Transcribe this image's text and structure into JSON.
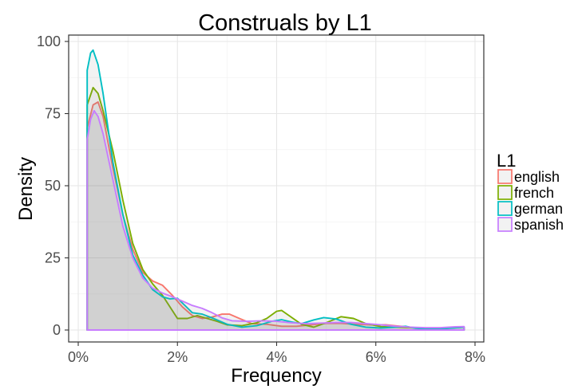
{
  "chart_data": {
    "type": "area",
    "title": "Construals by L1",
    "xlabel": "Frequency",
    "ylabel": "Density",
    "xlim": [
      0,
      8
    ],
    "ylim": [
      0,
      100
    ],
    "x_ticks": [
      0,
      2,
      4,
      6,
      8
    ],
    "x_tick_labels": [
      "0%",
      "2%",
      "4%",
      "6%",
      "8%"
    ],
    "y_ticks": [
      0,
      25,
      50,
      75,
      100
    ],
    "y_tick_labels": [
      "0",
      "25",
      "50",
      "75",
      "100"
    ],
    "grid": true,
    "legend": {
      "title": "L1",
      "position": "right"
    },
    "series": [
      {
        "name": "english",
        "color": "#F8766D",
        "points": [
          [
            0.18,
            70
          ],
          [
            0.3,
            78
          ],
          [
            0.4,
            79
          ],
          [
            0.5,
            74
          ],
          [
            0.7,
            56
          ],
          [
            0.9,
            40
          ],
          [
            1.1,
            28
          ],
          [
            1.3,
            20
          ],
          [
            1.5,
            17
          ],
          [
            1.7,
            15.5
          ],
          [
            1.9,
            12
          ],
          [
            2.1,
            8
          ],
          [
            2.3,
            5
          ],
          [
            2.5,
            4
          ],
          [
            2.7,
            4.5
          ],
          [
            2.9,
            5.5
          ],
          [
            3.05,
            5.5
          ],
          [
            3.25,
            4
          ],
          [
            3.5,
            2.2
          ],
          [
            3.8,
            2
          ],
          [
            4.1,
            1.3
          ],
          [
            4.4,
            1.3
          ],
          [
            4.7,
            1.8
          ],
          [
            5.0,
            2.3
          ],
          [
            5.3,
            2.3
          ],
          [
            5.6,
            2
          ],
          [
            5.9,
            1.8
          ],
          [
            6.2,
            1.8
          ],
          [
            6.5,
            1.3
          ],
          [
            6.8,
            0.8
          ],
          [
            7.1,
            0.6
          ],
          [
            7.4,
            0.8
          ],
          [
            7.78,
            1
          ]
        ]
      },
      {
        "name": "french",
        "color": "#7CAE00",
        "points": [
          [
            0.18,
            78
          ],
          [
            0.3,
            84
          ],
          [
            0.4,
            82
          ],
          [
            0.5,
            76
          ],
          [
            0.7,
            62
          ],
          [
            0.9,
            45
          ],
          [
            1.1,
            30
          ],
          [
            1.3,
            21
          ],
          [
            1.5,
            16
          ],
          [
            1.7,
            12
          ],
          [
            1.85,
            8
          ],
          [
            2.0,
            4
          ],
          [
            2.2,
            4
          ],
          [
            2.4,
            5
          ],
          [
            2.6,
            4
          ],
          [
            2.8,
            3
          ],
          [
            3.0,
            1.8
          ],
          [
            3.3,
            1.5
          ],
          [
            3.6,
            2.5
          ],
          [
            3.8,
            4
          ],
          [
            4.0,
            6.5
          ],
          [
            4.1,
            6.8
          ],
          [
            4.25,
            5
          ],
          [
            4.5,
            2
          ],
          [
            4.75,
            1
          ],
          [
            5.0,
            2.5
          ],
          [
            5.3,
            4.6
          ],
          [
            5.55,
            4
          ],
          [
            5.8,
            2.2
          ],
          [
            6.1,
            1.2
          ],
          [
            6.4,
            1
          ],
          [
            6.7,
            0.8
          ],
          [
            7.0,
            0.5
          ],
          [
            7.3,
            0.5
          ],
          [
            7.78,
            1
          ]
        ]
      },
      {
        "name": "german",
        "color": "#00BFC4",
        "points": [
          [
            0.18,
            90
          ],
          [
            0.25,
            96
          ],
          [
            0.3,
            97
          ],
          [
            0.4,
            92
          ],
          [
            0.5,
            82
          ],
          [
            0.7,
            58
          ],
          [
            0.9,
            40
          ],
          [
            1.1,
            26
          ],
          [
            1.3,
            19
          ],
          [
            1.5,
            14
          ],
          [
            1.7,
            11.5
          ],
          [
            1.85,
            10.8
          ],
          [
            2.0,
            11
          ],
          [
            2.15,
            8.5
          ],
          [
            2.3,
            6
          ],
          [
            2.5,
            5.5
          ],
          [
            2.7,
            4.2
          ],
          [
            3.0,
            2
          ],
          [
            3.3,
            1
          ],
          [
            3.6,
            1.5
          ],
          [
            3.9,
            3
          ],
          [
            4.1,
            3.6
          ],
          [
            4.3,
            2.8
          ],
          [
            4.5,
            2.2
          ],
          [
            4.75,
            3.5
          ],
          [
            4.95,
            4.3
          ],
          [
            5.2,
            3.8
          ],
          [
            5.5,
            2
          ],
          [
            5.8,
            1
          ],
          [
            6.1,
            0.7
          ],
          [
            6.4,
            1
          ],
          [
            6.6,
            1.3
          ],
          [
            6.8,
            0.6
          ],
          [
            7.1,
            0.3
          ],
          [
            7.4,
            0.5
          ],
          [
            7.78,
            1
          ]
        ]
      },
      {
        "name": "spanish",
        "color": "#C77CFF",
        "points": [
          [
            0.18,
            66
          ],
          [
            0.25,
            73
          ],
          [
            0.32,
            76
          ],
          [
            0.4,
            74
          ],
          [
            0.5,
            68
          ],
          [
            0.7,
            52
          ],
          [
            0.9,
            36
          ],
          [
            1.1,
            25
          ],
          [
            1.3,
            18
          ],
          [
            1.5,
            14.5
          ],
          [
            1.7,
            12.8
          ],
          [
            1.9,
            11.5
          ],
          [
            2.1,
            10
          ],
          [
            2.3,
            8.5
          ],
          [
            2.5,
            7.5
          ],
          [
            2.7,
            6
          ],
          [
            2.9,
            4.2
          ],
          [
            3.1,
            3.2
          ],
          [
            3.4,
            3
          ],
          [
            3.7,
            3.2
          ],
          [
            4.0,
            3
          ],
          [
            4.3,
            2.5
          ],
          [
            4.6,
            2.2
          ],
          [
            4.9,
            2.4
          ],
          [
            5.2,
            2.6
          ],
          [
            5.5,
            2.6
          ],
          [
            5.8,
            2.2
          ],
          [
            6.1,
            1.8
          ],
          [
            6.4,
            1.3
          ],
          [
            6.7,
            1
          ],
          [
            7.0,
            0.8
          ],
          [
            7.3,
            0.8
          ],
          [
            7.6,
            1.1
          ],
          [
            7.78,
            1.2
          ]
        ]
      }
    ]
  }
}
